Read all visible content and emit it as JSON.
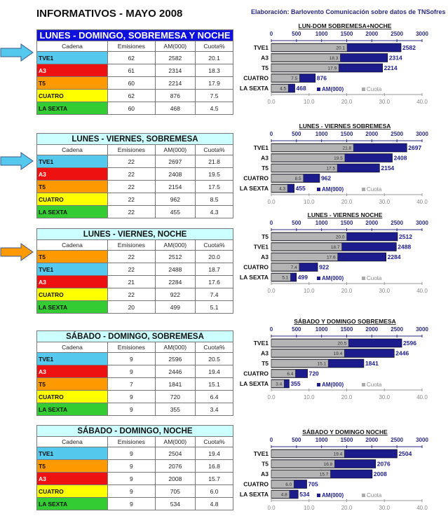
{
  "title": "INFORMATIVOS - MAYO 2008",
  "credit": "Elaboración: Barlovento Comunicación sobre datos de TNSofres",
  "headers": [
    "Cadena",
    "Emisiones",
    "AM(000)",
    "Cuota%"
  ],
  "legend": {
    "am": "AM(000)",
    "cuota": "Cuota"
  },
  "colors": {
    "TVE1": "#55c8ee",
    "A3": "#ee1111",
    "T5": "#ff9900",
    "CUATRO": "#ffff00",
    "LA SEXTA": "#33cc33",
    "am_bar": "#1c1c8c",
    "cuota_bar": "#b4b4b4"
  },
  "sections": [
    {
      "title": "LUNES - DOMINGO, SOBREMESA Y NOCHE",
      "arrow_color": "#55c8ee",
      "rows": [
        [
          "TVE1",
          "62",
          "2582",
          "20.1"
        ],
        [
          "A3",
          "61",
          "2314",
          "18.3"
        ],
        [
          "T5",
          "60",
          "2214",
          "17.9"
        ],
        [
          "CUATRO",
          "62",
          "876",
          "7.5"
        ],
        [
          "LA SEXTA",
          "60",
          "468",
          "4.5"
        ]
      ],
      "chart_data": {
        "type": "bar",
        "title": "LUN-DOM SOBREMESA+NOCHE",
        "categories": [
          "TVE1",
          "A3",
          "T5",
          "CUATRO",
          "LA SEXTA"
        ],
        "series": [
          {
            "name": "AM(000)",
            "values": [
              2582,
              2314,
              2214,
              876,
              468
            ],
            "axis": "top"
          },
          {
            "name": "Cuota",
            "values": [
              20.1,
              18.3,
              17.9,
              7.5,
              4.5
            ],
            "axis": "bottom"
          }
        ],
        "top_ticks": [
          "0",
          "500",
          "1000",
          "1500",
          "2000",
          "2500",
          "3000"
        ],
        "bottom_ticks": [
          "0.0",
          "10.0",
          "20.0",
          "30.0",
          "40.0"
        ],
        "top_range": [
          0,
          3000
        ],
        "bottom_range": [
          0,
          40
        ],
        "legend": "bottom"
      }
    },
    {
      "title": "LUNES - VIERNES, SOBREMESA",
      "arrow_color": "#55c8ee",
      "rows": [
        [
          "TVE1",
          "22",
          "2697",
          "21.8"
        ],
        [
          "A3",
          "22",
          "2408",
          "19.5"
        ],
        [
          "T5",
          "22",
          "2154",
          "17.5"
        ],
        [
          "CUATRO",
          "22",
          "962",
          "8.5"
        ],
        [
          "LA SEXTA",
          "22",
          "455",
          "4.3"
        ]
      ],
      "chart_data": {
        "type": "bar",
        "title": "LUNES - VIERNES SOBREMESA",
        "categories": [
          "TVE1",
          "A3",
          "T5",
          "CUATRO",
          "LA SEXTA"
        ],
        "series": [
          {
            "name": "AM(000)",
            "values": [
              2697,
              2408,
              2154,
              962,
              455
            ],
            "axis": "top"
          },
          {
            "name": "Cuota",
            "values": [
              21.8,
              19.5,
              17.5,
              8.5,
              4.3
            ],
            "axis": "bottom"
          }
        ],
        "top_ticks": [
          "0",
          "500",
          "1000",
          "1500",
          "2000",
          "2500",
          "3000"
        ],
        "bottom_ticks": [
          "0.0",
          "10.0",
          "20.0",
          "30.0",
          "40.0"
        ],
        "top_range": [
          0,
          3000
        ],
        "bottom_range": [
          0,
          40
        ],
        "legend": "bottom"
      }
    },
    {
      "title": "LUNES - VIERNES, NOCHE",
      "arrow_color": "#ff9900",
      "rows": [
        [
          "T5",
          "22",
          "2512",
          "20.0"
        ],
        [
          "TVE1",
          "22",
          "2488",
          "18.7"
        ],
        [
          "A3",
          "21",
          "2284",
          "17.6"
        ],
        [
          "CUATRO",
          "22",
          "922",
          "7.4"
        ],
        [
          "LA SEXTA",
          "20",
          "499",
          "5.1"
        ]
      ],
      "chart_data": {
        "type": "bar",
        "title": "LUNES - VIERNES  NOCHE",
        "categories": [
          "T5",
          "TVE1",
          "A3",
          "CUATRO",
          "LA SEXTA"
        ],
        "series": [
          {
            "name": "AM(000)",
            "values": [
              2512,
              2488,
              2284,
              922,
              499
            ],
            "axis": "top"
          },
          {
            "name": "Cuota",
            "values": [
              20.0,
              18.7,
              17.6,
              7.4,
              5.1
            ],
            "axis": "bottom"
          }
        ],
        "top_ticks": [
          "0",
          "500",
          "1000",
          "1500",
          "2000",
          "2500",
          "3000"
        ],
        "bottom_ticks": [
          "0.0",
          "10.0",
          "20.0",
          "30.0",
          "40.0"
        ],
        "top_range": [
          0,
          3000
        ],
        "bottom_range": [
          0,
          40
        ],
        "legend": "bottom"
      }
    },
    {
      "title": "SÁBADO - DOMINGO, SOBREMESA",
      "arrow_color": "",
      "rows": [
        [
          "TVE1",
          "9",
          "2596",
          "20.5"
        ],
        [
          "A3",
          "9",
          "2446",
          "19.4"
        ],
        [
          "T5",
          "7",
          "1841",
          "15.1"
        ],
        [
          "CUATRO",
          "9",
          "720",
          "6.4"
        ],
        [
          "LA SEXTA",
          "9",
          "355",
          "3.4"
        ]
      ],
      "chart_data": {
        "type": "bar",
        "title": "SÁBADO Y DOMINGO SOBREMESA",
        "categories": [
          "TVE1",
          "A3",
          "T5",
          "CUATRO",
          "LA SEXTA"
        ],
        "series": [
          {
            "name": "AM(000)",
            "values": [
              2596,
              2446,
              1841,
              720,
              355
            ],
            "axis": "top"
          },
          {
            "name": "Cuota",
            "values": [
              20.5,
              19.4,
              15.1,
              6.4,
              3.4
            ],
            "axis": "bottom"
          }
        ],
        "top_ticks": [
          "0",
          "500",
          "1000",
          "1500",
          "2000",
          "2500",
          "3000"
        ],
        "bottom_ticks": [
          "0.0",
          "10.0",
          "20.0",
          "30.0",
          "40.0"
        ],
        "top_range": [
          0,
          3000
        ],
        "bottom_range": [
          0,
          40
        ],
        "legend": "bottom"
      }
    },
    {
      "title": "SÁBADO - DOMINGO, NOCHE",
      "arrow_color": "",
      "rows": [
        [
          "TVE1",
          "9",
          "2504",
          "19.4"
        ],
        [
          "T5",
          "9",
          "2076",
          "16.8"
        ],
        [
          "A3",
          "9",
          "2008",
          "15.7"
        ],
        [
          "CUATRO",
          "9",
          "705",
          "6.0"
        ],
        [
          "LA SEXTA",
          "9",
          "534",
          "4.8"
        ]
      ],
      "chart_data": {
        "type": "bar",
        "title": "SÁBADO Y DOMINGO  NOCHE",
        "categories": [
          "TVE1",
          "T5",
          "A3",
          "CUATRO",
          "LA SEXTA"
        ],
        "series": [
          {
            "name": "AM(000)",
            "values": [
              2504,
              2076,
              2008,
              705,
              534
            ],
            "axis": "top"
          },
          {
            "name": "Cuota",
            "values": [
              19.4,
              16.8,
              15.7,
              6.0,
              4.8
            ],
            "axis": "bottom"
          }
        ],
        "top_ticks": [
          "0",
          "500",
          "1000",
          "1500",
          "2000",
          "2500",
          "3000"
        ],
        "bottom_ticks": [
          "0.0",
          "10.0",
          "20.0",
          "30.0",
          "40.0"
        ],
        "top_range": [
          0,
          3000
        ],
        "bottom_range": [
          0,
          40
        ],
        "legend": "bottom"
      }
    }
  ]
}
